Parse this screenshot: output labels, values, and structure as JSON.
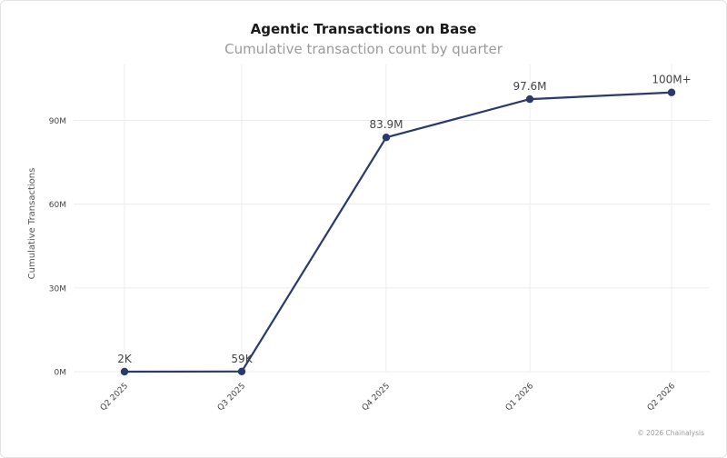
{
  "chart_data": {
    "type": "line",
    "title": "Agentic Transactions on Base",
    "subtitle": "Cumulative transaction count by quarter",
    "ylabel": "Cumulative Transactions",
    "xlabel": "",
    "categories": [
      "Q2 2025",
      "Q3 2025",
      "Q4 2025",
      "Q1 2026",
      "Q2 2026"
    ],
    "series": [
      {
        "values": [
          0.002,
          0.059,
          83.9,
          97.6,
          100
        ],
        "labels": [
          "2K",
          "59K",
          "83.9M",
          "97.6M",
          "100M+"
        ]
      }
    ],
    "yticks": [
      0,
      30,
      60,
      90
    ],
    "ytick_labels": [
      "0M",
      "30M",
      "60M",
      "90M"
    ],
    "ylim": [
      0,
      110
    ],
    "grid": true,
    "line_color": "#2a3a6c"
  },
  "footer": {
    "credit": "© 2026 Chainalysis"
  }
}
